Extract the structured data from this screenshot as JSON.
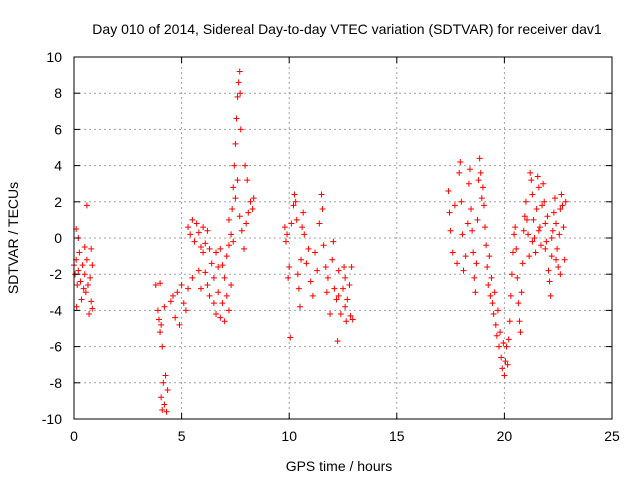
{
  "chart_data": {
    "type": "scatter",
    "title": "Day 010 of 2014, Sidereal Day-to-day VTEC variation (SDTVAR) for receiver dav1",
    "xlabel": "GPS time / hours",
    "ylabel": "SDTVAR / TECUs",
    "xlim": [
      0,
      25
    ],
    "ylim": [
      -10,
      10
    ],
    "grid": true,
    "marker": "+",
    "color": "#ff0000",
    "x_ticks": [
      "0",
      "5",
      "10",
      "15",
      "20",
      "25"
    ],
    "y_ticks": [
      "-10",
      "-8",
      "-6",
      "-4",
      "-2",
      "0",
      "2",
      "4",
      "6",
      "8",
      "10"
    ],
    "series": [
      {
        "name": "dav1",
        "points": [
          [
            0.0,
            -1.5
          ],
          [
            0.05,
            -2.0
          ],
          [
            0.1,
            -1.2
          ],
          [
            0.1,
            0.5
          ],
          [
            0.12,
            -3.8
          ],
          [
            0.15,
            -2.6
          ],
          [
            0.2,
            -1.8
          ],
          [
            0.2,
            0.0
          ],
          [
            0.25,
            -0.8
          ],
          [
            0.3,
            -2.4
          ],
          [
            0.35,
            -3.4
          ],
          [
            0.4,
            -1.5
          ],
          [
            0.45,
            -2.8
          ],
          [
            0.5,
            -0.5
          ],
          [
            0.5,
            -2.0
          ],
          [
            0.55,
            -3.0
          ],
          [
            0.6,
            -1.2
          ],
          [
            0.6,
            1.8
          ],
          [
            0.65,
            -2.6
          ],
          [
            0.7,
            -4.2
          ],
          [
            0.75,
            -2.2
          ],
          [
            0.8,
            -3.5
          ],
          [
            0.8,
            -0.6
          ],
          [
            0.85,
            -1.5
          ],
          [
            0.85,
            -3.9
          ],
          [
            3.8,
            -2.6
          ],
          [
            3.9,
            -4.0
          ],
          [
            3.95,
            -4.5
          ],
          [
            4.0,
            -5.2
          ],
          [
            4.05,
            -4.8
          ],
          [
            4.05,
            -8.8
          ],
          [
            4.1,
            -9.5
          ],
          [
            4.15,
            -8.0
          ],
          [
            4.2,
            -9.2
          ],
          [
            4.25,
            -7.6
          ],
          [
            4.3,
            -9.6
          ],
          [
            4.35,
            -8.4
          ],
          [
            4.1,
            -6.0
          ],
          [
            4.2,
            -3.8
          ],
          [
            4.0,
            -2.5
          ],
          [
            4.5,
            -3.5
          ],
          [
            4.6,
            -3.2
          ],
          [
            4.7,
            -4.4
          ],
          [
            4.8,
            -3.0
          ],
          [
            4.9,
            -4.8
          ],
          [
            5.0,
            -2.6
          ],
          [
            5.1,
            -3.6
          ],
          [
            5.2,
            -4.0
          ],
          [
            5.3,
            -2.8
          ],
          [
            5.5,
            -2.2
          ],
          [
            5.3,
            0.6
          ],
          [
            5.4,
            0.2
          ],
          [
            5.5,
            1.0
          ],
          [
            5.6,
            -0.2
          ],
          [
            5.7,
            0.8
          ],
          [
            5.8,
            0.3
          ],
          [
            5.9,
            -0.5
          ],
          [
            6.0,
            0.6
          ],
          [
            6.1,
            -0.3
          ],
          [
            6.2,
            0.4
          ],
          [
            5.8,
            -1.8
          ],
          [
            5.9,
            -2.8
          ],
          [
            6.0,
            -0.8
          ],
          [
            6.1,
            -1.9
          ],
          [
            6.2,
            -2.6
          ],
          [
            6.3,
            -0.6
          ],
          [
            6.4,
            -1.4
          ],
          [
            6.5,
            -2.2
          ],
          [
            6.6,
            -0.8
          ],
          [
            6.7,
            -1.6
          ],
          [
            6.3,
            -3.2
          ],
          [
            6.5,
            -3.6
          ],
          [
            6.6,
            -4.2
          ],
          [
            6.7,
            -3.0
          ],
          [
            6.8,
            -4.4
          ],
          [
            6.9,
            -3.6
          ],
          [
            7.0,
            -4.6
          ],
          [
            7.1,
            -3.2
          ],
          [
            7.2,
            -4.0
          ],
          [
            7.3,
            -2.6
          ],
          [
            6.8,
            -0.6
          ],
          [
            6.9,
            -1.5
          ],
          [
            7.0,
            -2.2
          ],
          [
            7.1,
            -1.0
          ],
          [
            7.2,
            -0.4
          ],
          [
            7.2,
            1.0
          ],
          [
            7.3,
            0.2
          ],
          [
            7.35,
            1.6
          ],
          [
            7.4,
            2.8
          ],
          [
            7.45,
            4.0
          ],
          [
            7.5,
            5.2
          ],
          [
            7.55,
            6.6
          ],
          [
            7.6,
            7.8
          ],
          [
            7.65,
            8.6
          ],
          [
            7.7,
            9.2
          ],
          [
            7.72,
            8.0
          ],
          [
            7.75,
            6.0
          ],
          [
            7.6,
            3.2
          ],
          [
            7.5,
            2.2
          ],
          [
            7.4,
            -0.2
          ],
          [
            7.7,
            1.2
          ],
          [
            7.8,
            0.4
          ],
          [
            7.9,
            -0.6
          ],
          [
            8.0,
            0.8
          ],
          [
            8.05,
            3.2
          ],
          [
            7.95,
            4.0
          ],
          [
            8.1,
            1.4
          ],
          [
            8.2,
            2.0
          ],
          [
            8.3,
            1.6
          ],
          [
            8.35,
            2.2
          ],
          [
            9.8,
            0.6
          ],
          [
            9.85,
            -0.2
          ],
          [
            9.9,
            0.2
          ],
          [
            9.95,
            -2.2
          ],
          [
            10.0,
            -1.6
          ],
          [
            10.05,
            -5.5
          ],
          [
            10.1,
            0.8
          ],
          [
            10.2,
            1.8
          ],
          [
            10.25,
            2.4
          ],
          [
            10.3,
            2.0
          ],
          [
            10.35,
            1.0
          ],
          [
            10.4,
            -2.0
          ],
          [
            10.45,
            -2.8
          ],
          [
            10.5,
            -3.8
          ],
          [
            10.55,
            -1.2
          ],
          [
            10.6,
            0.6
          ],
          [
            10.65,
            1.4
          ],
          [
            10.7,
            0.2
          ],
          [
            10.8,
            -1.4
          ],
          [
            10.9,
            -0.6
          ],
          [
            11.0,
            -2.4
          ],
          [
            11.1,
            -3.2
          ],
          [
            11.2,
            -0.8
          ],
          [
            11.3,
            -1.8
          ],
          [
            11.4,
            0.8
          ],
          [
            11.5,
            2.4
          ],
          [
            11.55,
            1.6
          ],
          [
            11.6,
            -0.4
          ],
          [
            11.7,
            -1.6
          ],
          [
            11.75,
            -3.0
          ],
          [
            11.8,
            -2.2
          ],
          [
            11.9,
            -4.2
          ],
          [
            12.0,
            -1.2
          ],
          [
            12.05,
            -0.2
          ],
          [
            12.1,
            -2.8
          ],
          [
            12.2,
            -3.4
          ],
          [
            12.25,
            -5.7
          ],
          [
            12.3,
            -3.2
          ],
          [
            12.4,
            -4.2
          ],
          [
            12.5,
            -2.8
          ],
          [
            12.55,
            -1.6
          ],
          [
            12.6,
            -3.8
          ],
          [
            12.65,
            -4.6
          ],
          [
            12.7,
            -3.4
          ],
          [
            12.8,
            -2.6
          ],
          [
            12.85,
            -4.3
          ],
          [
            12.9,
            -1.6
          ],
          [
            12.95,
            -4.5
          ],
          [
            12.6,
            -2.2
          ],
          [
            12.3,
            -1.8
          ],
          [
            17.4,
            2.6
          ],
          [
            17.45,
            1.4
          ],
          [
            17.5,
            0.4
          ],
          [
            17.6,
            -0.8
          ],
          [
            17.7,
            1.8
          ],
          [
            17.8,
            -1.4
          ],
          [
            17.9,
            3.6
          ],
          [
            17.95,
            4.2
          ],
          [
            18.0,
            2.0
          ],
          [
            18.05,
            0.2
          ],
          [
            18.1,
            -1.8
          ],
          [
            18.2,
            -1.0
          ],
          [
            18.3,
            0.8
          ],
          [
            18.35,
            3.0
          ],
          [
            18.4,
            3.8
          ],
          [
            18.45,
            1.6
          ],
          [
            18.5,
            0.4
          ],
          [
            18.55,
            -0.8
          ],
          [
            18.6,
            -2.2
          ],
          [
            18.65,
            -3.0
          ],
          [
            18.7,
            -1.4
          ],
          [
            18.75,
            1.0
          ],
          [
            18.8,
            3.2
          ],
          [
            18.85,
            4.4
          ],
          [
            18.9,
            3.6
          ],
          [
            18.95,
            2.2
          ],
          [
            19.0,
            2.8
          ],
          [
            19.05,
            1.8
          ],
          [
            19.1,
            0.6
          ],
          [
            19.15,
            -0.4
          ],
          [
            19.2,
            -1.6
          ],
          [
            19.25,
            -2.6
          ],
          [
            19.3,
            -1.0
          ],
          [
            19.35,
            -3.2
          ],
          [
            19.4,
            -2.2
          ],
          [
            19.45,
            -3.6
          ],
          [
            19.5,
            -4.2
          ],
          [
            19.55,
            -3.0
          ],
          [
            19.6,
            -4.8
          ],
          [
            19.65,
            -5.4
          ],
          [
            19.7,
            -4.0
          ],
          [
            19.75,
            -6.0
          ],
          [
            19.8,
            -5.2
          ],
          [
            19.85,
            -6.6
          ],
          [
            19.9,
            -7.2
          ],
          [
            19.95,
            -5.8
          ],
          [
            20.0,
            -7.6
          ],
          [
            20.05,
            -6.8
          ],
          [
            20.1,
            -6.0
          ],
          [
            20.15,
            -7.0
          ],
          [
            20.2,
            -5.6
          ],
          [
            20.25,
            -4.6
          ],
          [
            20.3,
            -3.2
          ],
          [
            20.35,
            -2.0
          ],
          [
            20.4,
            -0.8
          ],
          [
            20.45,
            0.2
          ],
          [
            20.5,
            0.6
          ],
          [
            20.55,
            -0.6
          ],
          [
            20.6,
            -2.2
          ],
          [
            20.65,
            -3.6
          ],
          [
            20.7,
            -4.6
          ],
          [
            20.75,
            -5.2
          ],
          [
            20.8,
            -3.0
          ],
          [
            20.85,
            -1.4
          ],
          [
            20.9,
            0.4
          ],
          [
            20.95,
            1.2
          ],
          [
            21.0,
            2.0
          ],
          [
            21.05,
            1.0
          ],
          [
            21.1,
            0.2
          ],
          [
            21.15,
            -1.0
          ],
          [
            21.2,
            3.6
          ],
          [
            21.25,
            3.2
          ],
          [
            21.3,
            2.4
          ],
          [
            21.35,
            1.0
          ],
          [
            21.4,
            0.0
          ],
          [
            21.45,
            -0.8
          ],
          [
            21.5,
            1.6
          ],
          [
            21.55,
            3.4
          ],
          [
            21.6,
            2.8
          ],
          [
            21.65,
            0.6
          ],
          [
            21.7,
            -0.4
          ],
          [
            21.75,
            1.8
          ],
          [
            21.8,
            3.0
          ],
          [
            21.85,
            2.0
          ],
          [
            21.9,
            0.8
          ],
          [
            21.95,
            -0.2
          ],
          [
            22.0,
            1.2
          ],
          [
            22.05,
            -1.8
          ],
          [
            22.1,
            -2.4
          ],
          [
            22.15,
            -3.2
          ],
          [
            22.2,
            -1.0
          ],
          [
            22.25,
            0.4
          ],
          [
            22.3,
            1.4
          ],
          [
            22.35,
            2.2
          ],
          [
            22.4,
            0.8
          ],
          [
            22.45,
            -0.6
          ],
          [
            22.5,
            -1.6
          ],
          [
            22.55,
            0.2
          ],
          [
            22.6,
            1.6
          ],
          [
            22.65,
            2.4
          ],
          [
            22.7,
            1.8
          ],
          [
            22.75,
            0.6
          ],
          [
            22.8,
            -1.2
          ],
          [
            22.85,
            2.0
          ],
          [
            22.6,
            -2.0
          ],
          [
            22.4,
            -1.2
          ],
          [
            22.2,
            0.0
          ],
          [
            21.9,
            -0.6
          ],
          [
            21.6,
            0.4
          ],
          [
            21.3,
            -0.2
          ]
        ]
      }
    ]
  }
}
